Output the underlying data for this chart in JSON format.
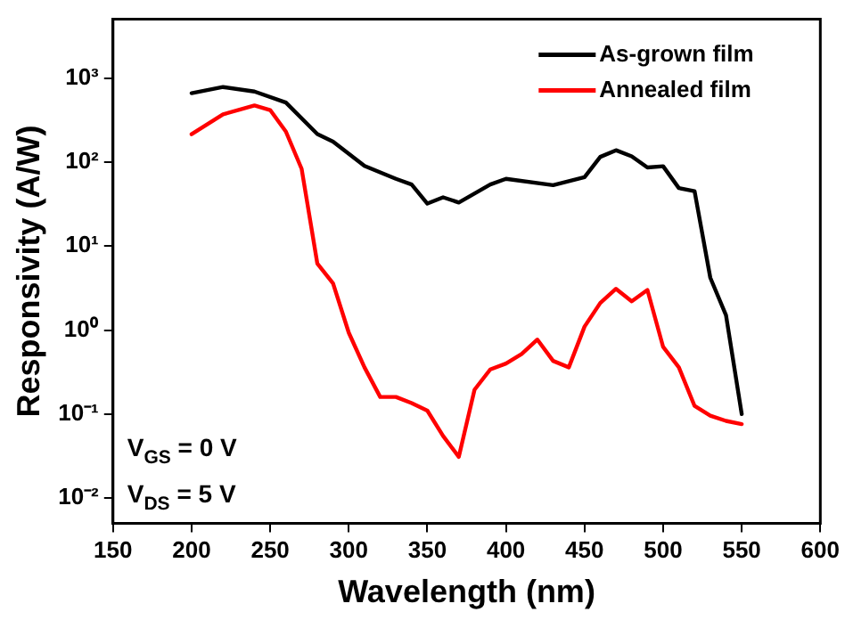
{
  "chart_data": {
    "type": "line",
    "xlabel": "Wavelength (nm)",
    "ylabel": "Responsivity (A/W)",
    "log": "y",
    "legend": "top right",
    "marker": "none",
    "line_style": "solid",
    "grid": false,
    "xlim": [
      150,
      600
    ],
    "xticks": [
      150,
      200,
      250,
      300,
      350,
      400,
      450,
      500,
      550,
      600
    ],
    "ylim": [
      0.005,
      5000
    ],
    "yticks": [
      {
        "value": 0.01,
        "label": "10⁻²"
      },
      {
        "value": 0.1,
        "label": "10⁻¹"
      },
      {
        "value": 1,
        "label": "10⁰"
      },
      {
        "value": 10,
        "label": "10¹"
      },
      {
        "value": 100,
        "label": "10²"
      },
      {
        "value": 1000,
        "label": "10³"
      }
    ],
    "annotations": [
      "V$_{GS}$ = 0 V",
      "V$_{DS}$ = 5 V"
    ],
    "series": [
      {
        "name": "As-grown film",
        "color": "#000000",
        "x": [
          200,
          220,
          240,
          260,
          280,
          290,
          310,
          330,
          340,
          350,
          360,
          370,
          390,
          400,
          430,
          450,
          460,
          470,
          480,
          490,
          500,
          510,
          520,
          530,
          540,
          550
        ],
        "values": [
          660,
          780,
          690,
          510,
          215,
          175,
          90,
          63,
          54,
          32,
          38,
          33,
          54,
          63,
          53,
          66,
          115,
          138,
          117,
          86,
          89,
          49,
          45,
          4.2,
          1.5,
          0.1
        ]
      },
      {
        "name": "Annealed film",
        "color": "#ff0000",
        "x": [
          200,
          220,
          240,
          250,
          260,
          270,
          280,
          290,
          300,
          310,
          320,
          330,
          340,
          350,
          360,
          370,
          380,
          390,
          400,
          410,
          420,
          430,
          440,
          450,
          460,
          470,
          480,
          490,
          500,
          510,
          520,
          530,
          540,
          550
        ],
        "values": [
          214,
          370,
          470,
          415,
          230,
          83,
          6.2,
          3.6,
          0.93,
          0.36,
          0.16,
          0.16,
          0.135,
          0.11,
          0.055,
          0.031,
          0.195,
          0.34,
          0.4,
          0.52,
          0.77,
          0.43,
          0.36,
          1.1,
          2.1,
          3.1,
          2.2,
          3,
          0.63,
          0.36,
          0.125,
          0.096,
          0.083,
          0.076
        ]
      }
    ]
  }
}
